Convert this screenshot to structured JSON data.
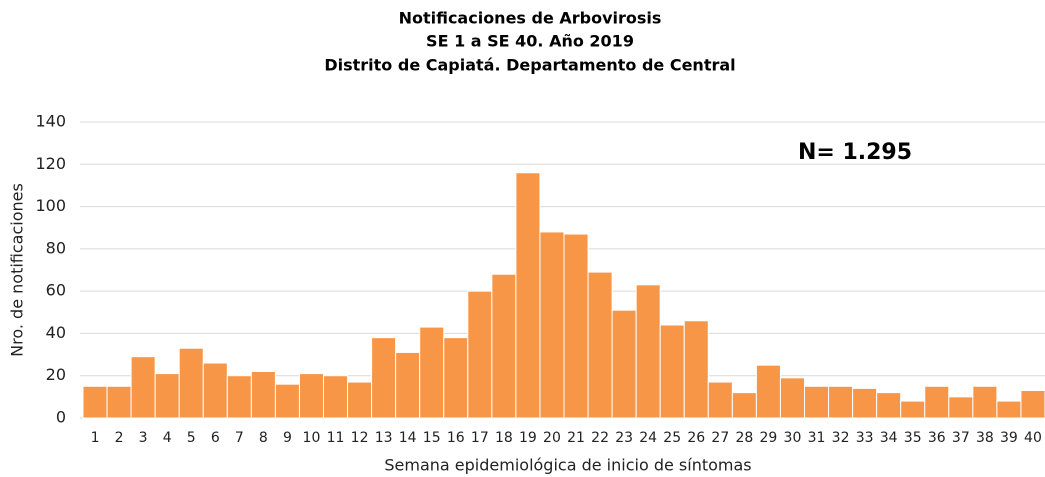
{
  "chart_data": {
    "type": "bar",
    "title": [
      "Notificaciones de Arbovirosis",
      "SE 1 a SE 40. Año 2019",
      "Distrito de Capiatá. Departamento de Central"
    ],
    "annotation": "N= 1.295",
    "x_label": "Semana epidemiológica de inicio de síntomas",
    "y_label": "Nro. de notificaciones",
    "categories": [
      "1",
      "2",
      "3",
      "4",
      "5",
      "6",
      "7",
      "8",
      "9",
      "10",
      "11",
      "12",
      "13",
      "14",
      "15",
      "16",
      "17",
      "18",
      "19",
      "20",
      "21",
      "22",
      "23",
      "24",
      "25",
      "26",
      "27",
      "28",
      "29",
      "30",
      "31",
      "32",
      "33",
      "34",
      "35",
      "36",
      "37",
      "38",
      "39",
      "40"
    ],
    "values": [
      15,
      15,
      29,
      21,
      33,
      26,
      20,
      22,
      16,
      21,
      20,
      17,
      38,
      31,
      43,
      38,
      60,
      68,
      116,
      88,
      87,
      69,
      51,
      63,
      44,
      46,
      17,
      12,
      25,
      19,
      15,
      15,
      14,
      12,
      8,
      15,
      10,
      15,
      8,
      13
    ],
    "color": "#f79646",
    "ylim": [
      0,
      140
    ],
    "yticks": [
      0,
      20,
      40,
      60,
      80,
      100,
      120,
      140
    ],
    "grid": true
  }
}
